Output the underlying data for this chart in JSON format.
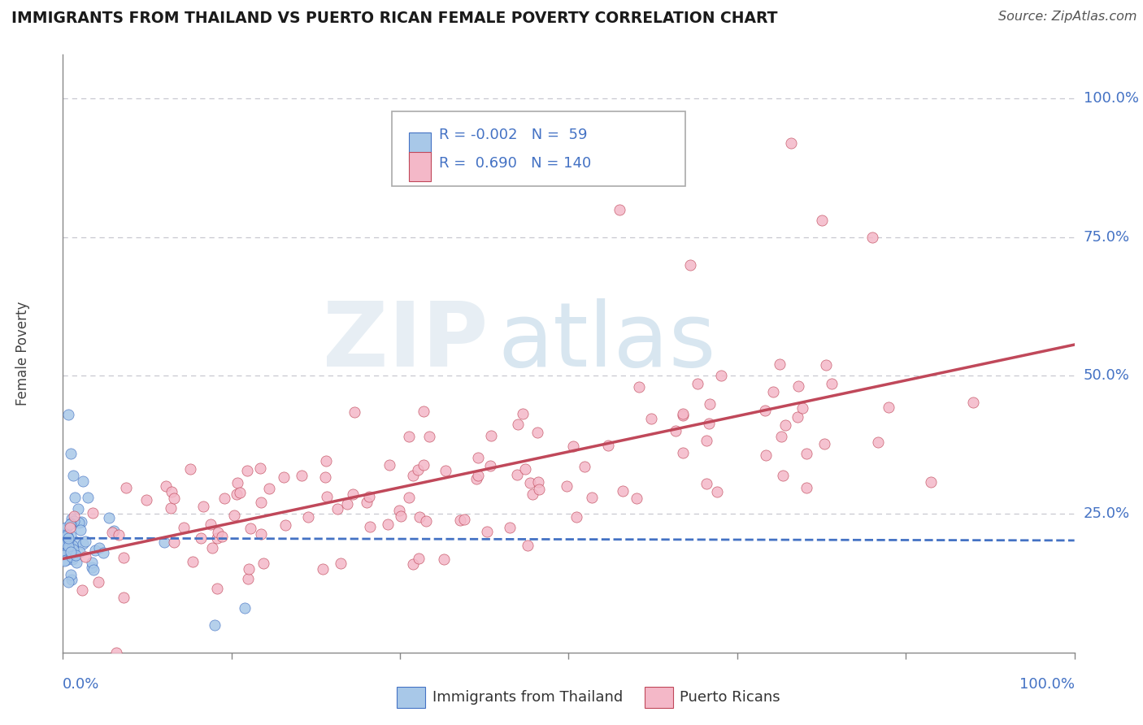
{
  "title": "IMMIGRANTS FROM THAILAND VS PUERTO RICAN FEMALE POVERTY CORRELATION CHART",
  "source": "Source: ZipAtlas.com",
  "ylabel": "Female Poverty",
  "color_blue": "#a8c8e8",
  "color_pink": "#f4b8c8",
  "color_blue_line": "#4472c4",
  "color_pink_line": "#c0485a",
  "color_text_blue": "#4472c4",
  "legend_line1": "R = -0.002   N =  59",
  "legend_line2": "R =  0.690   N = 140",
  "bottom_label1": "Immigrants from Thailand",
  "bottom_label2": "Puerto Ricans",
  "watermark_zip": "ZIP",
  "watermark_atlas": "atlas"
}
